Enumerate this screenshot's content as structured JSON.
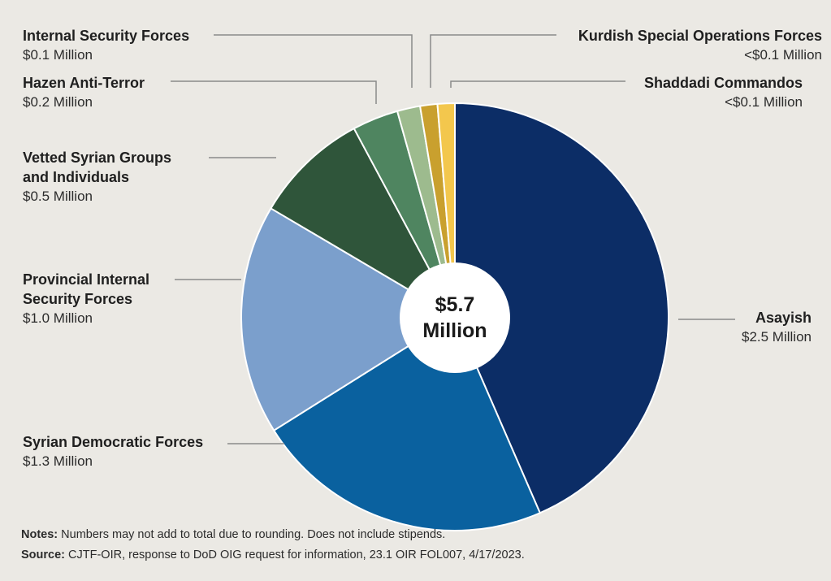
{
  "chart_data": {
    "type": "pie",
    "total_label": [
      "$5.7",
      "Million"
    ],
    "slices": [
      {
        "name": [
          "Asayish"
        ],
        "value_label": "$2.5 Million",
        "value": 2.5,
        "color": "#0c2d66"
      },
      {
        "name": [
          "Syrian Democratic Forces"
        ],
        "value_label": "$1.3 Million",
        "value": 1.3,
        "color": "#0a619f"
      },
      {
        "name": [
          "Provincial Internal",
          "Security Forces"
        ],
        "value_label": "$1.0 Million",
        "value": 1.0,
        "color": "#7b9fcc"
      },
      {
        "name": [
          "Vetted Syrian Groups",
          "and Individuals"
        ],
        "value_label": "$0.5 Million",
        "value": 0.5,
        "color": "#2f553a"
      },
      {
        "name": [
          "Hazen Anti-Terror"
        ],
        "value_label": "$0.2 Million",
        "value": 0.2,
        "color": "#4f8560"
      },
      {
        "name": [
          "Internal Security Forces"
        ],
        "value_label": "$0.1 Million",
        "value": 0.1,
        "color": "#9dbb8e"
      },
      {
        "name": [
          "Kurdish Special Operations Forces"
        ],
        "value_label": "<$0.1 Million",
        "value": 0.075,
        "color": "#c9a02e"
      },
      {
        "name": [
          "Shaddadi Commandos"
        ],
        "value_label": "<$0.1 Million",
        "value": 0.075,
        "color": "#f3c74d"
      }
    ]
  },
  "notes": {
    "label": "Notes:",
    "text": " Numbers may not add to total due to rounding. Does not include stipends."
  },
  "source": {
    "label": "Source:",
    "text": " CJTF-OIR, response to DoD OIG request for information, 23.1 OIR FOL007, 4/17/2023."
  }
}
